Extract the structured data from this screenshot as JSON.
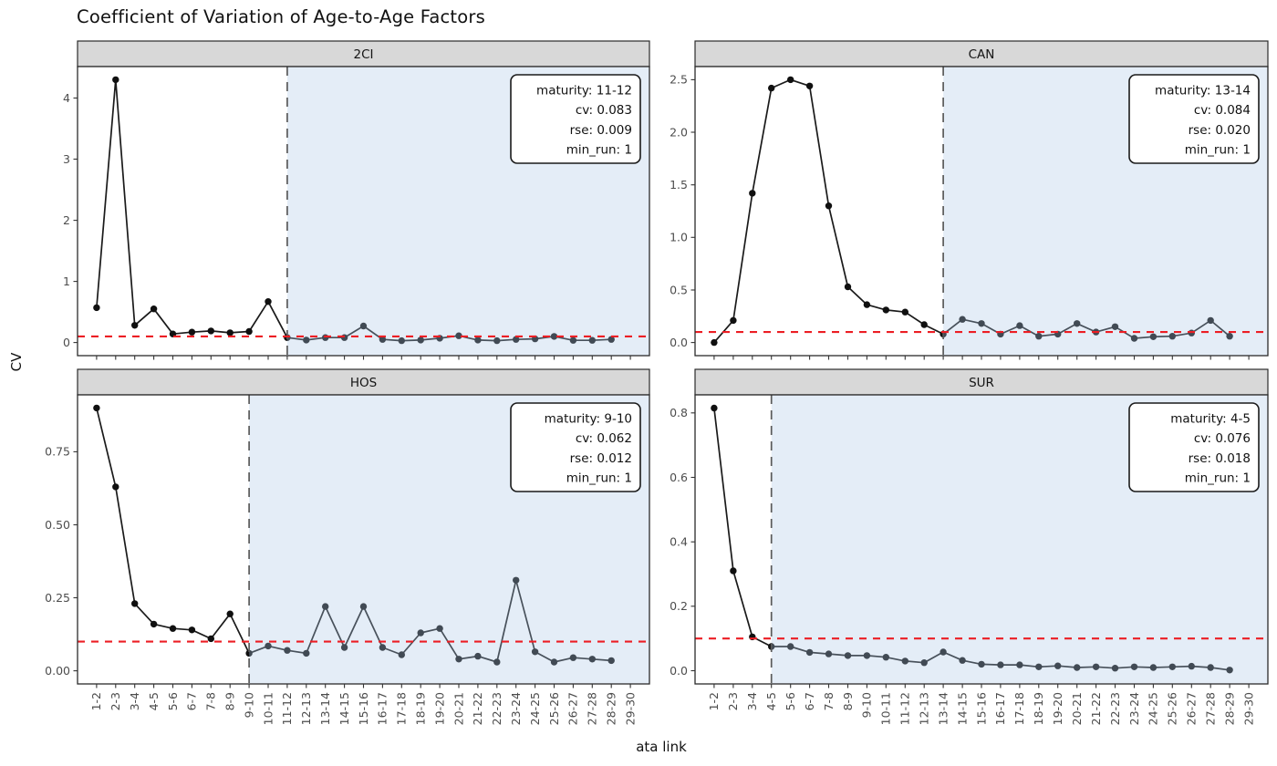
{
  "figure": {
    "title": "Coefficient of Variation of Age-to-Age Factors",
    "y_axis_title": "CV",
    "x_axis_title": "ata link"
  },
  "colors": {
    "line": "#1a1a1a",
    "point": "#101010",
    "red_threshold_line": "#EC1E24",
    "maturity_vline": "#5a5a5a",
    "shaded_region": "rgba(172,198,230,0.32)",
    "strip_background": "#D8D8D8",
    "panel_border": "#2b2b2b",
    "axis_text": "#4d4d4d",
    "annotation_border": "#1a1a1a",
    "annotation_background": "#ffffff"
  },
  "x_categories": [
    "1-2",
    "2-3",
    "3-4",
    "4-5",
    "5-6",
    "6-7",
    "7-8",
    "8-9",
    "9-10",
    "10-11",
    "11-12",
    "12-13",
    "13-14",
    "14-15",
    "15-16",
    "16-17",
    "17-18",
    "18-19",
    "19-20",
    "20-21",
    "21-22",
    "22-23",
    "23-24",
    "24-25",
    "25-26",
    "26-27",
    "27-28",
    "28-29",
    "29-30"
  ],
  "chart_data": {
    "type": "line",
    "title": "Coefficient of Variation of Age-to-Age Factors",
    "xlabel": "ata link",
    "ylabel": "CV",
    "grid": false,
    "facets": [
      {
        "name": "2CI",
        "values": [
          0.57,
          4.3,
          0.28,
          0.55,
          0.14,
          0.17,
          0.19,
          0.16,
          0.18,
          0.67,
          0.08,
          0.04,
          0.08,
          0.08,
          0.27,
          0.05,
          0.03,
          0.04,
          0.07,
          0.11,
          0.04,
          0.03,
          0.05,
          0.06,
          0.1,
          0.035,
          0.035,
          0.05
        ],
        "ylim": [
          -0.215,
          4.515
        ],
        "y_ticks": [
          {
            "v": 0,
            "label": "0"
          },
          {
            "v": 1,
            "label": "1"
          },
          {
            "v": 2,
            "label": "2"
          },
          {
            "v": 3,
            "label": "3"
          },
          {
            "v": 4,
            "label": "4"
          }
        ],
        "vline_category": "11-12",
        "shaded_from_category": "11-12",
        "red_line_y": 0.1,
        "annotation": [
          {
            "label": "maturity",
            "value": "11-12"
          },
          {
            "label": "cv",
            "value": "0.083"
          },
          {
            "label": "rse",
            "value": "0.009"
          },
          {
            "label": "min_run",
            "value": "1"
          }
        ]
      },
      {
        "name": "CAN",
        "values": [
          0.0,
          0.21,
          1.42,
          2.42,
          2.5,
          2.44,
          1.3,
          0.53,
          0.36,
          0.31,
          0.29,
          0.17,
          0.08,
          0.22,
          0.18,
          0.08,
          0.16,
          0.06,
          0.08,
          0.18,
          0.1,
          0.15,
          0.04,
          0.055,
          0.06,
          0.09,
          0.21,
          0.06
        ],
        "ylim": [
          -0.125,
          2.625
        ],
        "y_ticks": [
          {
            "v": 0,
            "label": "0.0"
          },
          {
            "v": 0.5,
            "label": "0.5"
          },
          {
            "v": 1,
            "label": "1.0"
          },
          {
            "v": 1.5,
            "label": "1.5"
          },
          {
            "v": 2,
            "label": "2.0"
          },
          {
            "v": 2.5,
            "label": "2.5"
          }
        ],
        "vline_category": "13-14",
        "shaded_from_category": "13-14",
        "red_line_y": 0.1,
        "annotation": [
          {
            "label": "maturity",
            "value": "13-14"
          },
          {
            "label": "cv",
            "value": "0.084"
          },
          {
            "label": "rse",
            "value": "0.020"
          },
          {
            "label": "min_run",
            "value": "1"
          }
        ]
      },
      {
        "name": "HOS",
        "values": [
          0.9,
          0.63,
          0.23,
          0.16,
          0.145,
          0.14,
          0.11,
          0.195,
          0.06,
          0.085,
          0.07,
          0.06,
          0.22,
          0.08,
          0.22,
          0.08,
          0.055,
          0.13,
          0.145,
          0.04,
          0.05,
          0.03,
          0.31,
          0.065,
          0.03,
          0.045,
          0.04,
          0.035
        ],
        "ylim": [
          -0.045,
          0.945
        ],
        "y_ticks": [
          {
            "v": 0,
            "label": "0.00"
          },
          {
            "v": 0.25,
            "label": "0.25"
          },
          {
            "v": 0.5,
            "label": "0.50"
          },
          {
            "v": 0.75,
            "label": "0.75"
          }
        ],
        "vline_category": "9-10",
        "shaded_from_category": "9-10",
        "red_line_y": 0.1,
        "annotation": [
          {
            "label": "maturity",
            "value": "9-10"
          },
          {
            "label": "cv",
            "value": "0.062"
          },
          {
            "label": "rse",
            "value": "0.012"
          },
          {
            "label": "min_run",
            "value": "1"
          }
        ]
      },
      {
        "name": "SUR",
        "values": [
          0.815,
          0.31,
          0.105,
          0.075,
          0.075,
          0.057,
          0.052,
          0.047,
          0.047,
          0.042,
          0.03,
          0.025,
          0.058,
          0.032,
          0.02,
          0.018,
          0.018,
          0.012,
          0.015,
          0.01,
          0.012,
          0.008,
          0.012,
          0.01,
          0.012,
          0.014,
          0.01,
          0.002
        ],
        "ylim": [
          -0.041,
          0.856
        ],
        "y_ticks": [
          {
            "v": 0,
            "label": "0.0"
          },
          {
            "v": 0.2,
            "label": "0.2"
          },
          {
            "v": 0.4,
            "label": "0.4"
          },
          {
            "v": 0.6,
            "label": "0.6"
          },
          {
            "v": 0.8,
            "label": "0.8"
          }
        ],
        "vline_category": "4-5",
        "shaded_from_category": "4-5",
        "red_line_y": 0.1,
        "annotation": [
          {
            "label": "maturity",
            "value": "4-5"
          },
          {
            "label": "cv",
            "value": "0.076"
          },
          {
            "label": "rse",
            "value": "0.018"
          },
          {
            "label": "min_run",
            "value": "1"
          }
        ]
      }
    ]
  }
}
